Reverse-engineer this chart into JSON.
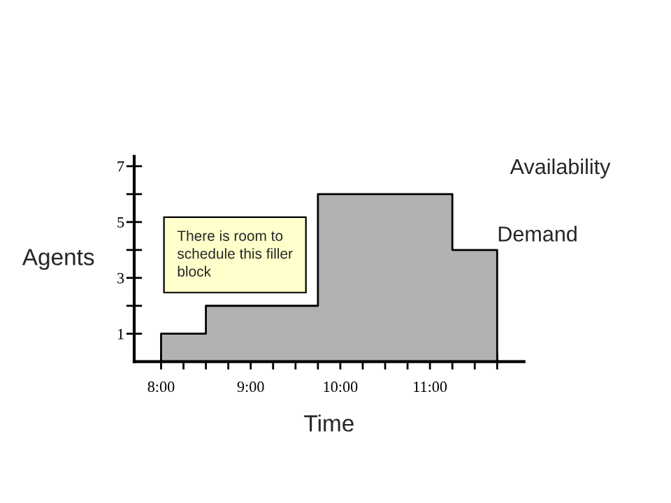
{
  "chart_data": {
    "type": "area",
    "xlabel": "Time",
    "ylabel": "Agents",
    "x": [
      8,
      8.5,
      9.75,
      11.25,
      11.75
    ],
    "series": [
      {
        "name": "Demand",
        "color": "#b2b2b2",
        "values": [
          1,
          2,
          6,
          4,
          4
        ]
      }
    ],
    "xlim": [
      7.7,
      12.05
    ],
    "xticks": [
      {
        "value": 8,
        "label": "8:00"
      },
      {
        "value": 8.25,
        "label": null
      },
      {
        "value": 8.5,
        "label": null
      },
      {
        "value": 8.75,
        "label": null
      },
      {
        "value": 9,
        "label": "9:00"
      },
      {
        "value": 9.25,
        "label": null
      },
      {
        "value": 9.5,
        "label": null
      },
      {
        "value": 9.75,
        "label": null
      },
      {
        "value": 10,
        "label": "10:00"
      },
      {
        "value": 10.25,
        "label": null
      },
      {
        "value": 10.5,
        "label": null
      },
      {
        "value": 10.75,
        "label": null
      },
      {
        "value": 11,
        "label": "11:00"
      },
      {
        "value": 11.25,
        "label": null
      },
      {
        "value": 11.5,
        "label": null
      },
      {
        "value": 11.75,
        "label": null
      }
    ],
    "ylim": [
      0,
      7.35
    ],
    "yticks": [
      1,
      {
        "value": 2,
        "label": null
      },
      3,
      {
        "value": 4,
        "label": null
      },
      5,
      {
        "value": 6,
        "label": null
      },
      7
    ],
    "annotations": [
      "Availability",
      "There is room to\nschedule this filler\nblock"
    ]
  }
}
